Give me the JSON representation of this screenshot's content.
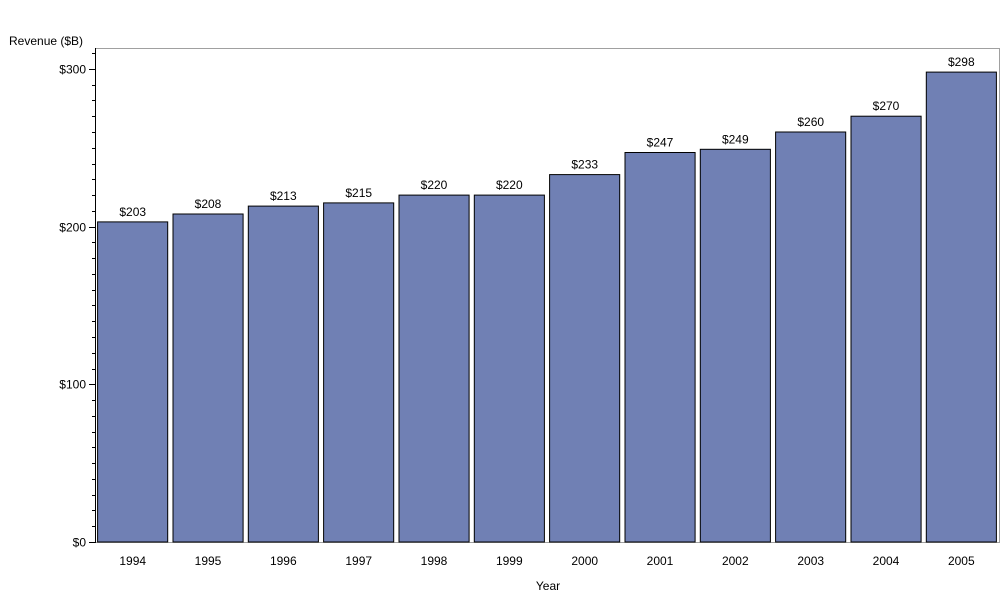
{
  "chart_data": {
    "type": "bar",
    "title": "",
    "xlabel": "Year",
    "ylabel": "Revenue ($B)",
    "categories": [
      "1994",
      "1995",
      "1996",
      "1997",
      "1998",
      "1999",
      "2000",
      "2001",
      "2002",
      "2003",
      "2004",
      "2005"
    ],
    "values": [
      203,
      208,
      213,
      215,
      220,
      220,
      233,
      247,
      249,
      260,
      270,
      298
    ],
    "data_labels": [
      "$203",
      "$208",
      "$213",
      "$215",
      "$220",
      "$220",
      "$233",
      "$247",
      "$249",
      "$260",
      "$270",
      "$298"
    ],
    "ylim": [
      0,
      313
    ],
    "y_ticks": [
      0,
      100,
      200,
      300
    ],
    "y_tick_labels": [
      "$0",
      "$100",
      "$200",
      "$300"
    ],
    "y_minor_step": 10,
    "grid": false,
    "legend": "none",
    "colors": {
      "bar": "#7080b4",
      "outline": "#000000",
      "frame": "#a0a0a0"
    }
  }
}
